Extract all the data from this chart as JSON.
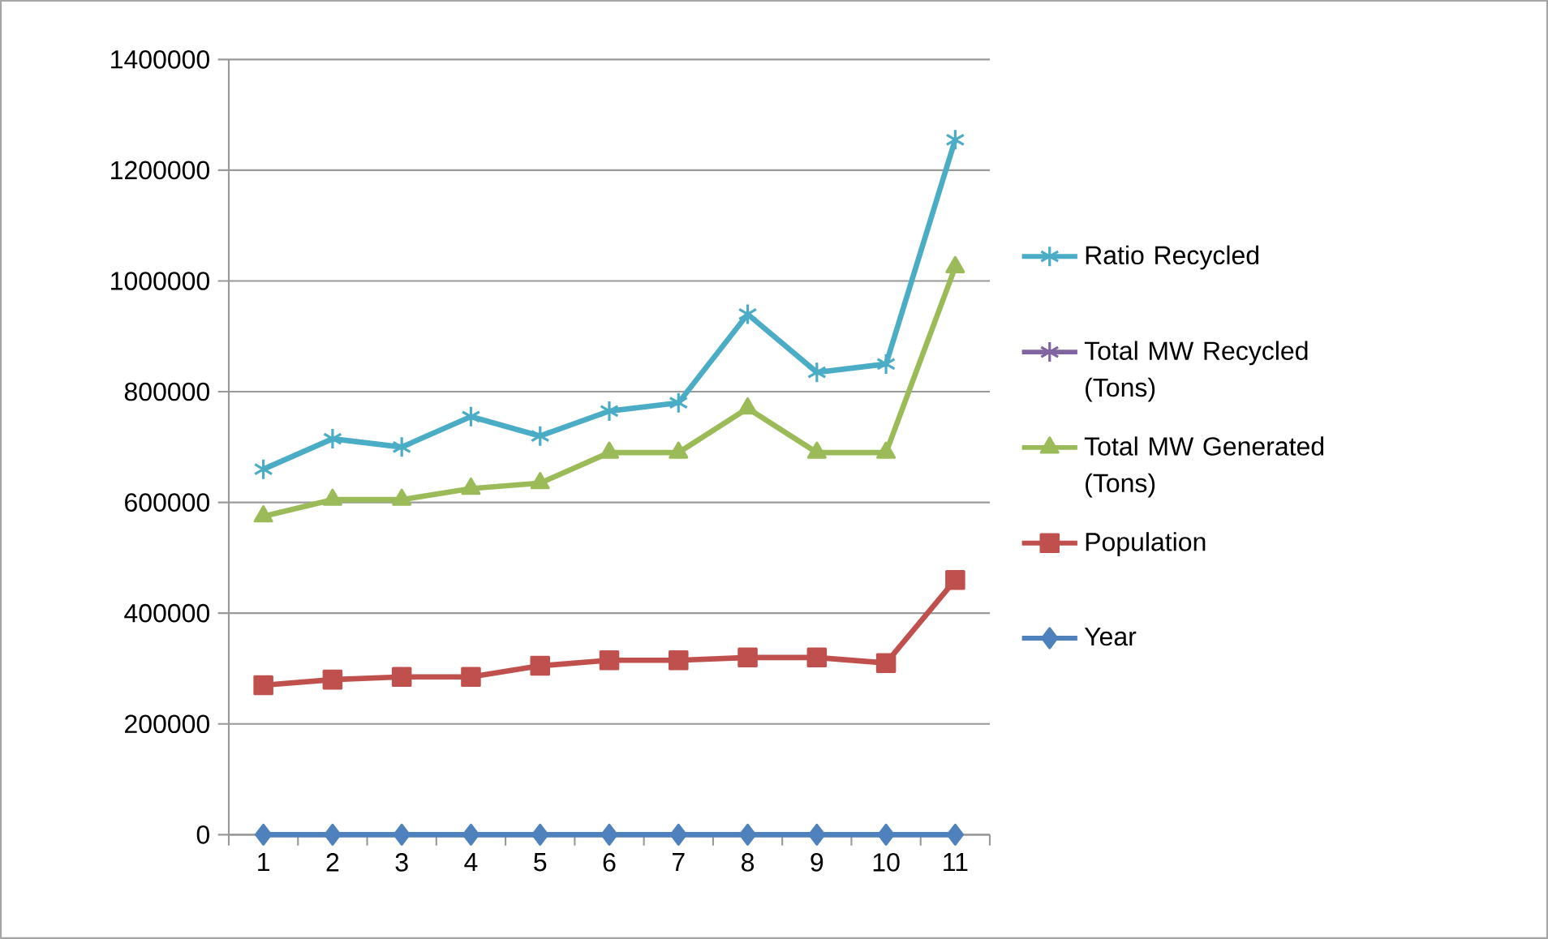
{
  "chart_data": {
    "type": "line",
    "categories": [
      "1",
      "2",
      "3",
      "4",
      "5",
      "6",
      "7",
      "8",
      "9",
      "10",
      "11"
    ],
    "series": [
      {
        "name": "Ratio Recycled",
        "color": "#4bacc6",
        "marker": "cross",
        "values": [
          660000,
          715000,
          700000,
          755000,
          720000,
          765000,
          780000,
          940000,
          835000,
          850000,
          1255000
        ]
      },
      {
        "name": "Total MW Recycled (Tons)",
        "color": "#8064a2",
        "marker": "cross",
        "values": [
          null,
          null,
          null,
          null,
          null,
          null,
          null,
          null,
          null,
          null,
          null
        ]
      },
      {
        "name": "Total MW Generated (Tons)",
        "color": "#9bbb59",
        "marker": "triangle",
        "values": [
          575000,
          605000,
          605000,
          625000,
          635000,
          690000,
          690000,
          770000,
          690000,
          690000,
          1025000
        ]
      },
      {
        "name": "Population",
        "color": "#c0504d",
        "marker": "square",
        "values": [
          270000,
          280000,
          285000,
          285000,
          305000,
          315000,
          315000,
          320000,
          320000,
          310000,
          460000
        ]
      },
      {
        "name": "Year",
        "color": "#4f81bd",
        "marker": "diamond",
        "values": [
          0,
          0,
          0,
          0,
          0,
          0,
          0,
          0,
          0,
          0,
          0
        ]
      }
    ],
    "ylim": [
      0,
      1400000
    ],
    "yticks": [
      0,
      200000,
      400000,
      600000,
      800000,
      1000000,
      1200000,
      1400000
    ],
    "grid": "y",
    "legend": "right"
  }
}
